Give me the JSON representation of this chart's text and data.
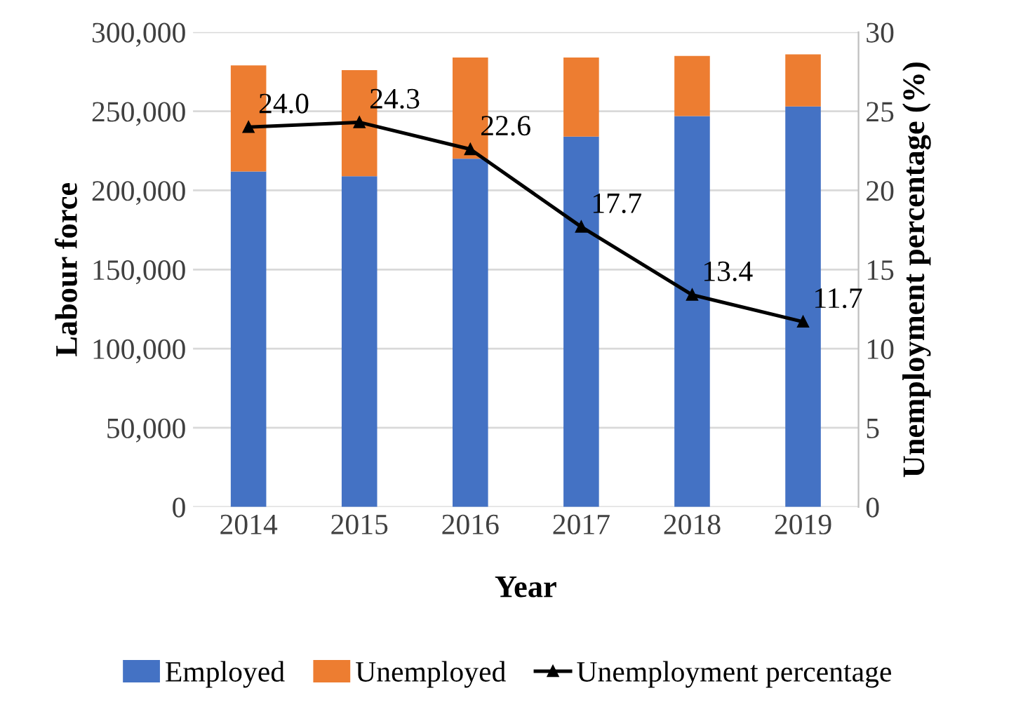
{
  "chart_data": {
    "type": "bar",
    "stacked": true,
    "xlabel": "Year",
    "ylabel": "Labour force",
    "y2label": "Unemployment percentage (%)",
    "categories": [
      "2014",
      "2015",
      "2016",
      "2017",
      "2018",
      "2019"
    ],
    "series": [
      {
        "name": "Employed",
        "color": "#4472c4",
        "values": [
          212000,
          209000,
          220000,
          234000,
          247000,
          253000
        ]
      },
      {
        "name": "Unemployed",
        "color": "#ed7d31",
        "values": [
          67000,
          67000,
          64000,
          50000,
          38000,
          33000
        ]
      },
      {
        "name": "Unemployment percentage",
        "type": "line",
        "axis": "y2",
        "color": "#000000",
        "marker": "triangle",
        "values": [
          24.0,
          24.3,
          22.6,
          17.7,
          13.4,
          11.7
        ],
        "value_labels": [
          "24.0",
          "24.3",
          "22.6",
          "17.7",
          "13.4",
          "11.7"
        ]
      }
    ],
    "ylim": [
      0,
      300000
    ],
    "yticks": [
      {
        "value": 0,
        "label": "0"
      },
      {
        "value": 50000,
        "label": "50,000"
      },
      {
        "value": 100000,
        "label": "100,000"
      },
      {
        "value": 150000,
        "label": "150,000"
      },
      {
        "value": 200000,
        "label": "200,000"
      },
      {
        "value": 250000,
        "label": "250,000"
      },
      {
        "value": 300000,
        "label": "300,000"
      }
    ],
    "y2lim": [
      0,
      30
    ],
    "y2ticks": [
      0,
      5,
      10,
      15,
      20,
      25,
      30
    ],
    "grid": "y",
    "legend": "bottom"
  }
}
